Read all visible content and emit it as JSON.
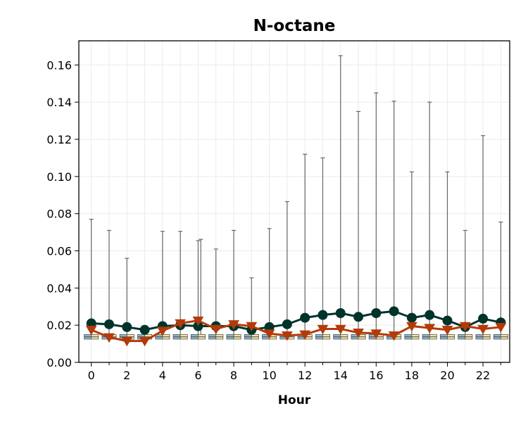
{
  "chart_data": {
    "type": "line",
    "title": "N-octane",
    "xlabel": "Hour",
    "ylabel": "",
    "xlim": [
      -0.7,
      23.5
    ],
    "ylim": [
      0,
      0.173
    ],
    "grid": true,
    "x": [
      0,
      1,
      2,
      3,
      4,
      5,
      6,
      7,
      8,
      9,
      10,
      11,
      12,
      13,
      14,
      15,
      16,
      17,
      18,
      19,
      20,
      21,
      22,
      23
    ],
    "xticks": [
      0,
      2,
      4,
      6,
      8,
      10,
      12,
      14,
      16,
      18,
      20,
      22
    ],
    "xtick_labels": [
      "0",
      "2",
      "4",
      "6",
      "8",
      "10",
      "12",
      "14",
      "16",
      "18",
      "20",
      "22"
    ],
    "yticks": [
      0,
      0.02,
      0.04,
      0.06,
      0.08,
      0.1,
      0.12,
      0.14,
      0.16
    ],
    "ytick_labels": [
      "0.00",
      "0.02",
      "0.04",
      "0.06",
      "0.08",
      "0.10",
      "0.12",
      "0.14",
      "0.16"
    ],
    "series": [
      {
        "marker": "circle",
        "color": "#00332a",
        "values": [
          0.021,
          0.0205,
          0.019,
          0.0175,
          0.0195,
          0.02,
          0.0195,
          0.0195,
          0.0195,
          0.0175,
          0.019,
          0.0205,
          0.024,
          0.0255,
          0.0265,
          0.0245,
          0.0265,
          0.0275,
          0.024,
          0.0255,
          0.0225,
          0.019,
          0.0235,
          0.0215
        ]
      },
      {
        "marker": "triangle-down",
        "color": "#b33a0a",
        "values": [
          0.0175,
          0.0135,
          0.0115,
          0.0115,
          0.017,
          0.021,
          0.0225,
          0.018,
          0.0205,
          0.0195,
          0.0155,
          0.0145,
          0.015,
          0.018,
          0.018,
          0.016,
          0.0155,
          0.0145,
          0.0195,
          0.0185,
          0.0175,
          0.0195,
          0.018,
          0.019
        ]
      }
    ],
    "boxes": {
      "color_even": "#8fb8c8",
      "color_odd": "#f2e8a8",
      "q1": [
        0.0125,
        0.0125,
        0.0125,
        0.0125,
        0.0125,
        0.0125,
        0.0125,
        0.0125,
        0.0125,
        0.0125,
        0.0125,
        0.0125,
        0.0125,
        0.0125,
        0.0125,
        0.0125,
        0.0125,
        0.0125,
        0.0125,
        0.0125,
        0.0125,
        0.0125,
        0.0125,
        0.0125
      ],
      "q3": [
        0.015,
        0.015,
        0.015,
        0.015,
        0.015,
        0.015,
        0.015,
        0.015,
        0.015,
        0.015,
        0.015,
        0.015,
        0.015,
        0.015,
        0.015,
        0.015,
        0.015,
        0.015,
        0.015,
        0.015,
        0.015,
        0.015,
        0.015,
        0.015
      ],
      "median": [
        0.0137,
        0.0137,
        0.0137,
        0.0137,
        0.0137,
        0.0137,
        0.0137,
        0.0137,
        0.0137,
        0.0137,
        0.0137,
        0.0137,
        0.0137,
        0.0137,
        0.0137,
        0.0137,
        0.0137,
        0.0137,
        0.0137,
        0.0137,
        0.0137,
        0.0137,
        0.0137,
        0.0137
      ],
      "whisker_high": [
        0.077,
        0.071,
        0.056,
        0.0,
        0.0705,
        0.0705,
        0.0655,
        0.061,
        0.071,
        0.0455,
        0.072,
        0.0865,
        0.112,
        0.11,
        0.165,
        0.135,
        0.145,
        0.1405,
        0.1025,
        0.14,
        0.1025,
        0.071,
        0.122,
        0.0755
      ],
      "extra_whisker": {
        "x": 6.15,
        "value": 0.0662
      }
    }
  }
}
